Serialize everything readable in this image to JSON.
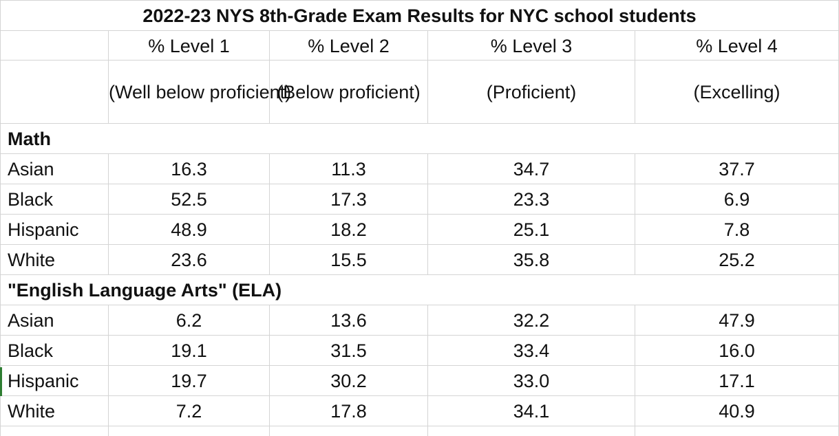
{
  "table": {
    "title": "2022-23 NYS 8th-Grade Exam Results for NYC school students",
    "columns": [
      {
        "label": "% Level 1",
        "sub": "(Well below proficient)"
      },
      {
        "label": "% Level 2",
        "sub": "(Below proficient)"
      },
      {
        "label": "% Level 3",
        "sub": "(Proficient)"
      },
      {
        "label": "% Level 4",
        "sub": "(Excelling)"
      }
    ],
    "sections": [
      {
        "name": "Math",
        "rows": [
          {
            "group": "Asian",
            "values": [
              "16.3",
              "11.3",
              "34.7",
              "37.7"
            ]
          },
          {
            "group": "Black",
            "values": [
              "52.5",
              "17.3",
              "23.3",
              "6.9"
            ]
          },
          {
            "group": "Hispanic",
            "values": [
              "48.9",
              "18.2",
              "25.1",
              "7.8"
            ]
          },
          {
            "group": "White",
            "values": [
              "23.6",
              "15.5",
              "35.8",
              "25.2"
            ]
          }
        ]
      },
      {
        "name": "\"English Language Arts\" (ELA)",
        "rows": [
          {
            "group": "Asian",
            "values": [
              "6.2",
              "13.6",
              "32.2",
              "47.9"
            ]
          },
          {
            "group": "Black",
            "values": [
              "19.1",
              "31.5",
              "33.4",
              "16.0"
            ]
          },
          {
            "group": "Hispanic",
            "values": [
              "19.7",
              "30.2",
              "33.0",
              "17.1"
            ]
          },
          {
            "group": "White",
            "values": [
              "7.2",
              "17.8",
              "34.1",
              "40.9"
            ]
          }
        ]
      }
    ]
  },
  "chart_data": {
    "type": "table",
    "title": "2022-23 NYS 8th-Grade Exam Results for NYC school students",
    "columns": [
      "% Level 1 (Well below proficient)",
      "% Level 2 (Below proficient)",
      "% Level 3 (Proficient)",
      "% Level 4 (Excelling)"
    ],
    "sections": [
      {
        "name": "Math",
        "rows": [
          {
            "group": "Asian",
            "values": [
              16.3,
              11.3,
              34.7,
              37.7
            ]
          },
          {
            "group": "Black",
            "values": [
              52.5,
              17.3,
              23.3,
              6.9
            ]
          },
          {
            "group": "Hispanic",
            "values": [
              48.9,
              18.2,
              25.1,
              7.8
            ]
          },
          {
            "group": "White",
            "values": [
              23.6,
              15.5,
              35.8,
              25.2
            ]
          }
        ]
      },
      {
        "name": "\"English Language Arts\" (ELA)",
        "rows": [
          {
            "group": "Asian",
            "values": [
              6.2,
              13.6,
              32.2,
              47.9
            ]
          },
          {
            "group": "Black",
            "values": [
              19.1,
              31.5,
              33.4,
              16.0
            ]
          },
          {
            "group": "Hispanic",
            "values": [
              19.7,
              30.2,
              33.0,
              17.1
            ]
          },
          {
            "group": "White",
            "values": [
              7.2,
              17.8,
              34.1,
              40.9
            ]
          }
        ]
      }
    ]
  }
}
